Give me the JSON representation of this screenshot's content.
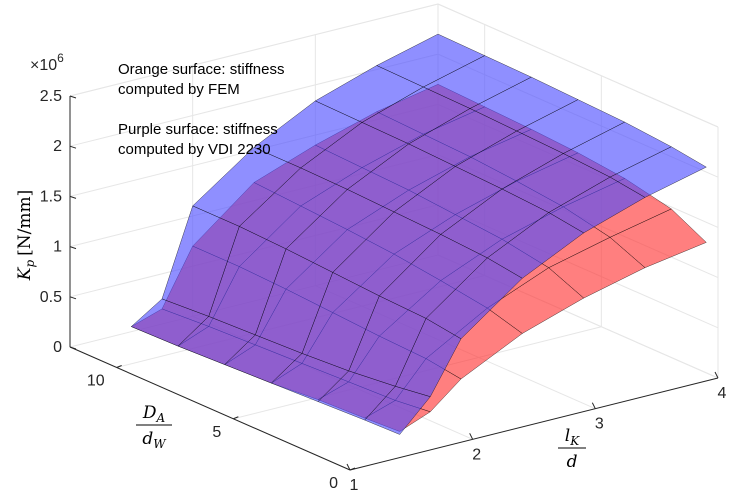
{
  "chart_data": {
    "type": "surface",
    "annotations": {
      "exponent_base": "×10",
      "exponent_power": "6",
      "line1": "Orange surface: stiffness",
      "line2": "computed by FEM",
      "line3": "Purple surface: stiffness",
      "line4": "computed by VDI 2230"
    },
    "axes": {
      "x": {
        "label_main": "l",
        "label_sub": "K",
        "label_den": "d",
        "ticks": [
          "1",
          "2",
          "3",
          "4"
        ],
        "lim": [
          1,
          4
        ]
      },
      "y": {
        "label_main": "D",
        "label_sub": "A",
        "label_den": "d",
        "label_den_sub": "W",
        "ticks": [
          "0",
          "5",
          "10"
        ],
        "lim": [
          0,
          12
        ]
      },
      "z": {
        "label_main": "K",
        "label_sub": "p",
        "label_units": "[N/mm]",
        "ticks": [
          "0",
          "0.5",
          "1",
          "1.5",
          "2",
          "2.5"
        ],
        "lim": [
          0,
          2.5
        ],
        "multiplier": 1000000
      }
    },
    "grid": true,
    "series": [
      {
        "color": "#ff3030",
        "x": [
          1.5,
          1.75,
          2.0,
          2.5,
          3.0,
          3.5,
          4.0
        ],
        "y": [
          0.5,
          2.0,
          4.0,
          6.0,
          8.0,
          10.0,
          12.0
        ],
        "z": [
          [
            0.18,
            0.16,
            0.14,
            0.1,
            0.08,
            0.06,
            0.05
          ],
          [
            0.3,
            0.26,
            0.24,
            0.22,
            0.2,
            0.18,
            0.15
          ],
          [
            0.55,
            0.6,
            0.62,
            0.65,
            0.68,
            0.7,
            0.7
          ],
          [
            0.85,
            0.95,
            1.02,
            1.08,
            1.12,
            1.15,
            1.18
          ],
          [
            1.05,
            1.2,
            1.28,
            1.32,
            1.36,
            1.38,
            1.4
          ],
          [
            1.2,
            1.35,
            1.45,
            1.5,
            1.54,
            1.56,
            1.58
          ],
          [
            1.3,
            1.48,
            1.58,
            1.63,
            1.66,
            1.68,
            1.7
          ]
        ]
      },
      {
        "color": "#4a4aff",
        "x": [
          1.5,
          1.75,
          2.0,
          2.5,
          3.0,
          3.5,
          4.0
        ],
        "y": [
          0.5,
          2.0,
          4.0,
          6.0,
          8.0,
          10.0,
          12.0
        ],
        "z": [
          [
            0.15,
            0.14,
            0.12,
            0.1,
            0.08,
            0.06,
            0.05
          ],
          [
            0.45,
            0.4,
            0.35,
            0.32,
            0.3,
            0.28,
            0.25
          ],
          [
            0.95,
            1.0,
            1.02,
            1.05,
            1.08,
            1.1,
            1.1
          ],
          [
            1.4,
            1.45,
            1.48,
            1.5,
            1.52,
            1.53,
            1.53
          ],
          [
            1.7,
            1.75,
            1.78,
            1.8,
            1.82,
            1.83,
            1.84
          ],
          [
            1.9,
            1.95,
            1.98,
            2.0,
            2.02,
            2.03,
            2.04
          ],
          [
            2.05,
            2.1,
            2.14,
            2.16,
            2.18,
            2.19,
            2.2
          ]
        ]
      }
    ]
  }
}
